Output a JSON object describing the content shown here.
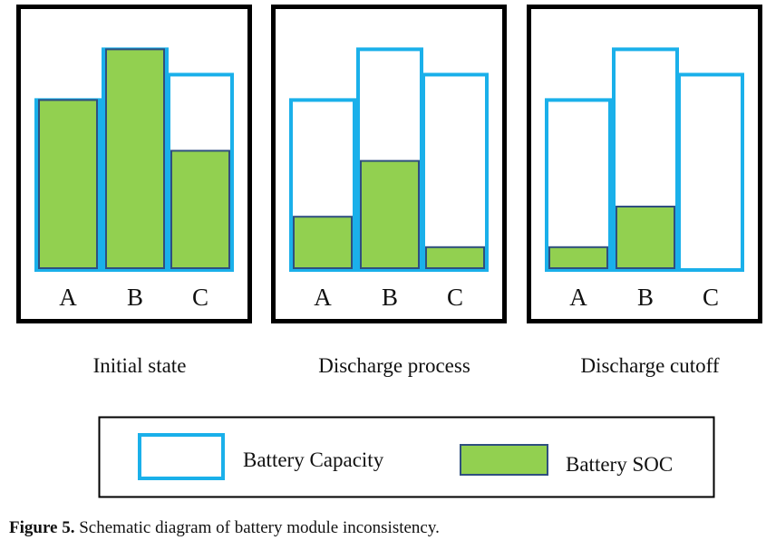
{
  "colors": {
    "capacity_border": "#1ab0ea",
    "soc_fill": "#92d050",
    "soc_border": "#2f4f7f",
    "frame": "#000000"
  },
  "panels": [
    {
      "label": "Initial state",
      "cells": [
        {
          "name": "A",
          "capacity": 0.67,
          "soc": 0.67
        },
        {
          "name": "B",
          "capacity": 0.87,
          "soc": 0.87
        },
        {
          "name": "C",
          "capacity": 0.77,
          "soc": 0.47
        }
      ]
    },
    {
      "label": "Discharge process",
      "cells": [
        {
          "name": "A",
          "capacity": 0.67,
          "soc": 0.21
        },
        {
          "name": "B",
          "capacity": 0.87,
          "soc": 0.43
        },
        {
          "name": "C",
          "capacity": 0.77,
          "soc": 0.09
        }
      ]
    },
    {
      "label": "Discharge cutoff",
      "cells": [
        {
          "name": "A",
          "capacity": 0.67,
          "soc": 0.09
        },
        {
          "name": "B",
          "capacity": 0.87,
          "soc": 0.25
        },
        {
          "name": "C",
          "capacity": 0.77,
          "soc": 0.0
        }
      ]
    }
  ],
  "legend": {
    "capacity_label": "Battery Capacity",
    "soc_label": "Battery SOC"
  },
  "caption": {
    "number": "Figure 5.",
    "text": " Schematic diagram of battery module inconsistency."
  }
}
